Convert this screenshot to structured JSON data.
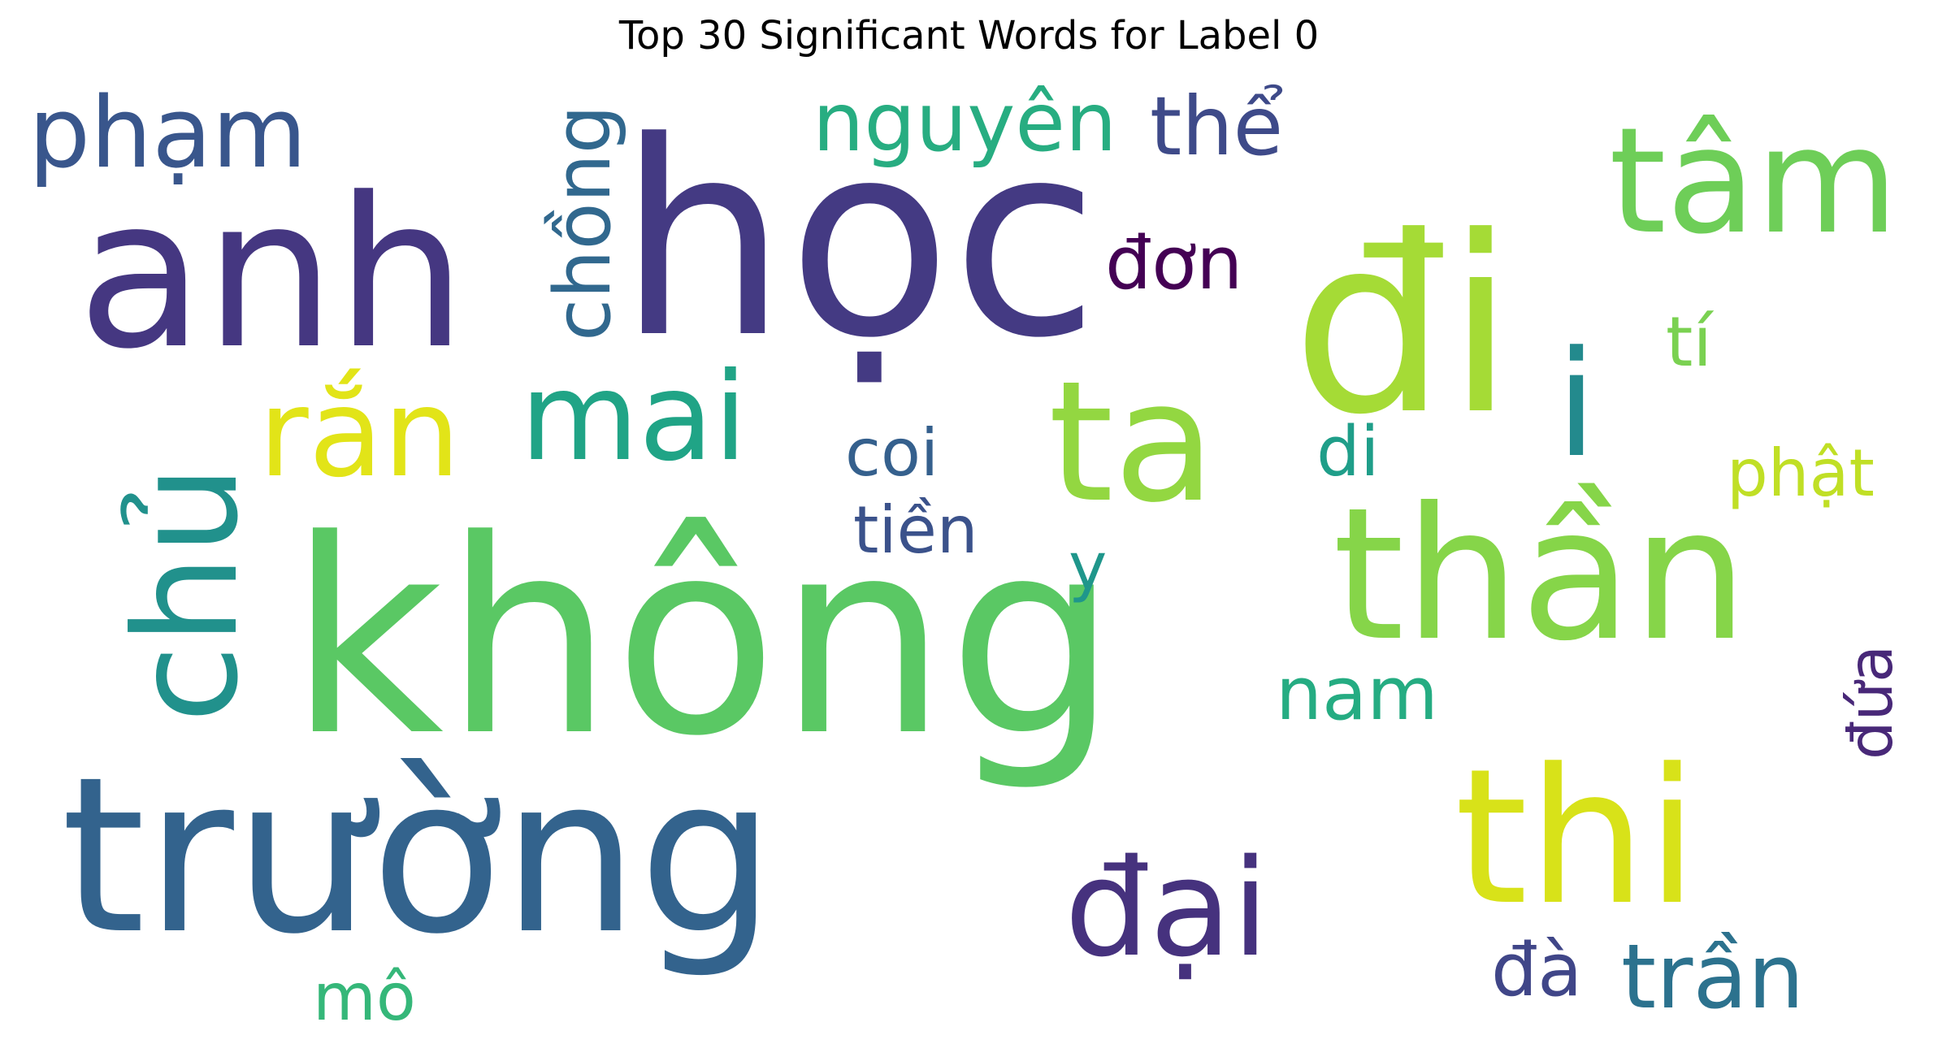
{
  "title": "Top 30 Significant Words for Label 0",
  "words": [
    {
      "text": "không",
      "color": "#5ac864"
    },
    {
      "text": "học",
      "color": "#443a83"
    },
    {
      "text": "đi",
      "color": "#a5db36"
    },
    {
      "text": "anh",
      "color": "#453781"
    },
    {
      "text": "trường",
      "color": "#33638d"
    },
    {
      "text": "thần",
      "color": "#86d549"
    },
    {
      "text": "thi",
      "color": "#d8e219"
    },
    {
      "text": "tâm",
      "color": "#6ece58"
    },
    {
      "text": "ta",
      "color": "#93d741"
    },
    {
      "text": "đại",
      "color": "#46327e"
    },
    {
      "text": "chủ",
      "color": "#21918c"
    },
    {
      "text": "phạm",
      "color": "#39568c"
    },
    {
      "text": "rắn",
      "color": "#e2e418"
    },
    {
      "text": "mai",
      "color": "#20a486"
    },
    {
      "text": "i",
      "color": "#238a8d"
    },
    {
      "text": "chồng",
      "color": "#31688e"
    },
    {
      "text": "nguyên",
      "color": "#27ad81"
    },
    {
      "text": "thể",
      "color": "#3e4a89"
    },
    {
      "text": "trần",
      "color": "#2c728e"
    },
    {
      "text": "đơn",
      "color": "#440154"
    },
    {
      "text": "coi",
      "color": "#35608d"
    },
    {
      "text": "tí",
      "color": "#7ad151"
    },
    {
      "text": "di",
      "color": "#1f9e89"
    },
    {
      "text": "nam",
      "color": "#25ac82"
    },
    {
      "text": "phật",
      "color": "#c0df25"
    },
    {
      "text": "tiền",
      "color": "#3b528b"
    },
    {
      "text": "y",
      "color": "#1f968b"
    },
    {
      "text": "đà",
      "color": "#404688"
    },
    {
      "text": "đứa",
      "color": "#482878"
    },
    {
      "text": "mô",
      "color": "#35b779"
    }
  ]
}
